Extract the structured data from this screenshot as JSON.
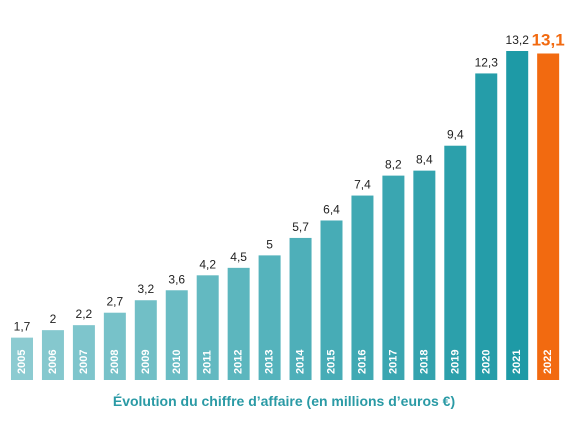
{
  "chart_data": {
    "type": "bar",
    "categories": [
      "2005",
      "2006",
      "2007",
      "2008",
      "2009",
      "2010",
      "2011",
      "2012",
      "2013",
      "2014",
      "2015",
      "2016",
      "2017",
      "2018",
      "2019",
      "2020",
      "2021",
      "2022"
    ],
    "values": [
      1.7,
      2,
      2.2,
      2.7,
      3.2,
      3.6,
      4.2,
      4.5,
      5,
      5.7,
      6.4,
      7.4,
      8.2,
      8.4,
      9.4,
      12.3,
      13.2,
      13.1
    ],
    "value_labels": [
      "1,7",
      "2",
      "2,2",
      "2,7",
      "3,2",
      "3,6",
      "4,2",
      "4,5",
      "5",
      "5,7",
      "6,4",
      "7,4",
      "8,2",
      "8,4",
      "9,4",
      "12,3",
      "13,2",
      "13,1"
    ],
    "highlight_index": 17,
    "title": "Évolution du chiffre d’affaire (en millions d’euros €)",
    "xlabel": "",
    "ylabel": "",
    "ylim": [
      0,
      13.2
    ],
    "grid": false,
    "legend": "none",
    "colors": {
      "gradient_start": "#8ccbd1",
      "gradient_end": "#1e9aa6",
      "highlight": "#f26a10",
      "caption": "#2a9aa5",
      "value_label": "#222222",
      "tick_label": "#ffffff"
    }
  }
}
